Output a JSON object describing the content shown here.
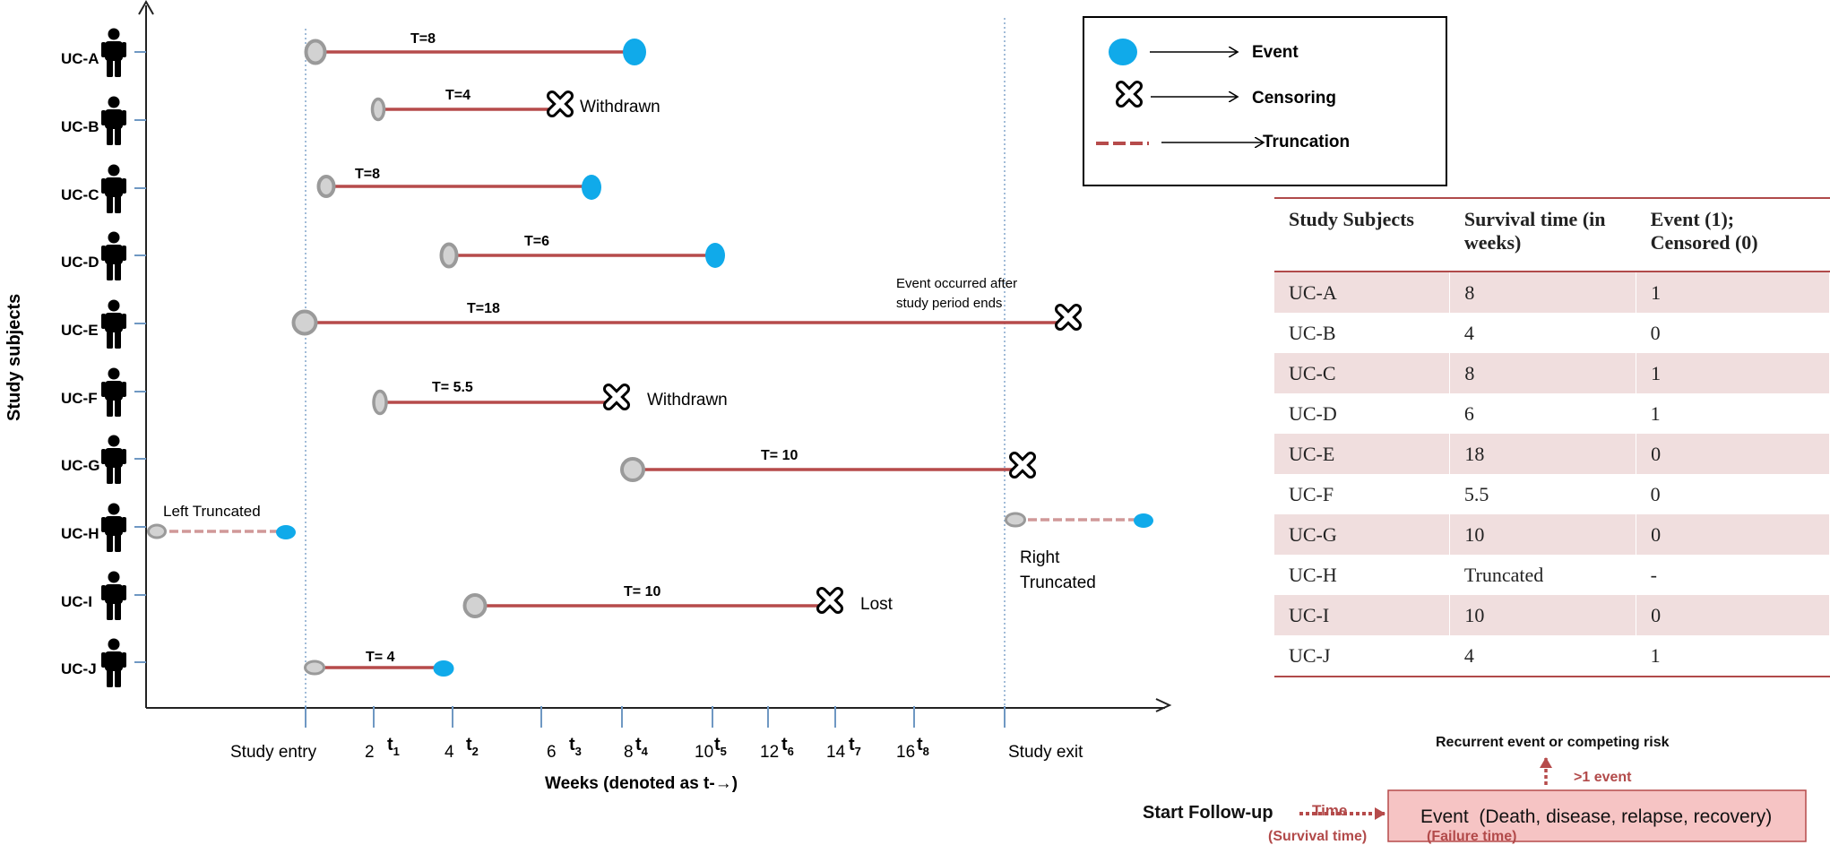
{
  "axis": {
    "y_label": "Study subjects",
    "x_label": "Weeks (denoted as t-→)",
    "study_entry": "Study entry",
    "study_exit": "Study exit",
    "tick_numbers": [
      "2",
      "4",
      "6",
      "8",
      "10",
      "12",
      "14",
      "16"
    ],
    "tick_t_labels": [
      "t",
      "t",
      "t",
      "t",
      "t",
      "t",
      "t",
      "t"
    ],
    "tick_t_subs": [
      "1",
      "2",
      "3",
      "4",
      "5",
      "6",
      "7",
      "8"
    ]
  },
  "subjects": [
    {
      "id": "UC-A",
      "t_label": "T=8"
    },
    {
      "id": "UC-B",
      "t_label": "T=4",
      "note": "Withdrawn"
    },
    {
      "id": "UC-C",
      "t_label": "T=8"
    },
    {
      "id": "UC-D",
      "t_label": "T=6"
    },
    {
      "id": "UC-E",
      "t_label": "T=18",
      "note_line1": "Event occurred after",
      "note_line2": "study period ends"
    },
    {
      "id": "UC-F",
      "t_label": "T= 5.5",
      "note": "Withdrawn"
    },
    {
      "id": "UC-G",
      "t_label": "T= 10"
    },
    {
      "id": "UC-H",
      "left_note": "Left Truncated",
      "right_note_line1": "Right",
      "right_note_line2": "Truncated"
    },
    {
      "id": "UC-I",
      "t_label": "T= 10",
      "note": "Lost"
    },
    {
      "id": "UC-J",
      "t_label": "T= 4"
    }
  ],
  "legend": {
    "event": "Event",
    "censoring": "Censoring",
    "truncation": "Truncation"
  },
  "table": {
    "headers": {
      "col1": "Study Subjects",
      "col2a": "Survival time (in",
      "col2b": "weeks)",
      "col3a": "Event (1);",
      "col3b": "Censored (0)"
    },
    "rows": [
      {
        "subject": "UC-A",
        "time": "8",
        "status": "1"
      },
      {
        "subject": "UC-B",
        "time": "4",
        "status": "0"
      },
      {
        "subject": "UC-C",
        "time": "8",
        "status": "1"
      },
      {
        "subject": "UC-D",
        "time": "6",
        "status": "1"
      },
      {
        "subject": "UC-E",
        "time": "18",
        "status": "0"
      },
      {
        "subject": "UC-F",
        "time": "5.5",
        "status": "0"
      },
      {
        "subject": "UC-G",
        "time": "10",
        "status": "0"
      },
      {
        "subject": "UC-H",
        "time": "Truncated",
        "status": "-"
      },
      {
        "subject": "UC-I",
        "time": "10",
        "status": "0"
      },
      {
        "subject": "UC-J",
        "time": "4",
        "status": "1"
      }
    ]
  },
  "flow": {
    "recurrent": "Recurrent event or competing risk",
    "more_events": ">1 event",
    "start": "Start Follow-up",
    "time": "Time",
    "survival_time": "(Survival time)",
    "failure_time": "(Failure time)",
    "event_box": "Event  (Death, disease, relapse, recovery)"
  },
  "colors": {
    "line": "#b64b4b",
    "event_fill": "#10aaea",
    "start_fill": "#d2d2d2",
    "start_stroke": "#9a9a9a",
    "dotted": "#6f98c3",
    "table_shade": "#f0dede",
    "table_rule": "#b04a4a",
    "flow_box_fill": "#f6c4c4",
    "flow_text": "#b24a4a"
  }
}
